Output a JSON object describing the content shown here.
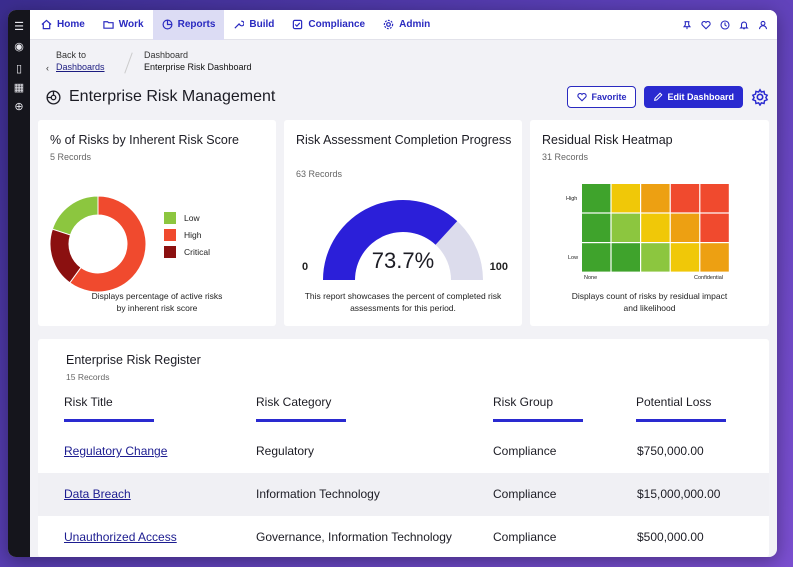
{
  "nav": {
    "items": [
      {
        "label": "Home",
        "icon": "home-icon"
      },
      {
        "label": "Work",
        "icon": "folder-icon"
      },
      {
        "label": "Reports",
        "icon": "reports-icon"
      },
      {
        "label": "Build",
        "icon": "wrench-icon"
      },
      {
        "label": "Compliance",
        "icon": "checkbox-icon"
      },
      {
        "label": "Admin",
        "icon": "gear-icon"
      }
    ],
    "active": "Reports",
    "right_icons": [
      "pin-icon",
      "heart-icon",
      "history-icon",
      "bell-icon",
      "user-icon"
    ]
  },
  "breadcrumb": {
    "back_label": "Back to",
    "back_link": "Dashboards",
    "parent": "Dashboard",
    "current": "Enterprise Risk Dashboard"
  },
  "page": {
    "title": "Enterprise Risk Management",
    "favorite_label": "Favorite",
    "edit_label": "Edit Dashboard"
  },
  "cards": {
    "donut": {
      "title": "% of Risks by Inherent Risk Score",
      "records": "5 Records",
      "footer": "Displays percentage of active risks by inherent risk score"
    },
    "gauge": {
      "title": "Risk Assessment Completion Progress",
      "records": "63 Records",
      "min_label": "0",
      "max_label": "100",
      "value_label": "73.7%",
      "footer": "This report showcases the percent of completed risk assessments for this period."
    },
    "heatmap": {
      "title": "Residual Risk Heatmap",
      "records": "31 Records",
      "y_high": "High",
      "y_low": "Low",
      "x_none": "None",
      "x_conf": "Confidential",
      "footer": "Displays count of risks by residual impact and likelihood"
    }
  },
  "chart_data": [
    {
      "type": "pie",
      "title": "% of Risks by Inherent Risk Score",
      "categories": [
        "Low",
        "High",
        "Critical"
      ],
      "values": [
        20,
        60,
        20
      ],
      "colors": [
        "#8cc63f",
        "#f04a2e",
        "#8b1010"
      ]
    },
    {
      "type": "gauge",
      "title": "Risk Assessment Completion Progress",
      "value": 73.7,
      "min": 0,
      "max": 100,
      "colors": {
        "fill": "#2b1fd9",
        "track": "#dcdcec"
      }
    },
    {
      "type": "heatmap",
      "title": "Residual Risk Heatmap",
      "rows": 3,
      "cols": 5,
      "cells": [
        [
          "#3fa32c",
          "#f0c808",
          "#eda012",
          "#f04a2e",
          "#f04a2e"
        ],
        [
          "#3fa32c",
          "#8cc63f",
          "#f0c808",
          "#eda012",
          "#f04a2e"
        ],
        [
          "#3fa32c",
          "#3fa32c",
          "#8cc63f",
          "#f0c808",
          "#eda012"
        ]
      ]
    }
  ],
  "register": {
    "title": "Enterprise Risk Register",
    "records": "15 Records",
    "headers": [
      "Risk Title",
      "Risk Category",
      "Risk Group",
      "Potential Loss"
    ],
    "rows": [
      [
        "Regulatory Change",
        "Regulatory",
        "Compliance",
        "$750,000.00"
      ],
      [
        "Data Breach",
        "Information Technology",
        "Compliance",
        "$15,000,000.00"
      ],
      [
        "Unauthorized Access",
        "Governance, Information Technology",
        "Compliance",
        "$500,000.00"
      ]
    ]
  },
  "colors": {
    "accent": "#2a2ad0",
    "rail": "#15151c"
  }
}
